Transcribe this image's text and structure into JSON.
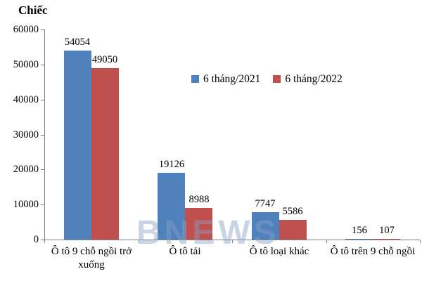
{
  "chart_data": {
    "type": "bar",
    "title": "Chiếc",
    "categories": [
      "Ô tô 9 chỗ ngồi trở xuống",
      "Ô tô tải",
      "Ô tô loại khác",
      "Ô tô trên 9 chỗ ngồi"
    ],
    "series": [
      {
        "name": "6 tháng/2021",
        "color": "#4F81BD",
        "values": [
          54054,
          19126,
          7747,
          156
        ]
      },
      {
        "name": "6 tháng/2022",
        "color": "#C0504D",
        "values": [
          49050,
          8988,
          5586,
          107
        ]
      }
    ],
    "ylabel": "Chiếc",
    "ylim": [
      0,
      60000
    ],
    "ytick_step": 10000,
    "yticks": [
      0,
      10000,
      20000,
      30000,
      40000,
      50000,
      60000
    ],
    "grid": false,
    "legend_position": "inside-top-right",
    "data_labels": true,
    "watermark": "BNEWS"
  }
}
